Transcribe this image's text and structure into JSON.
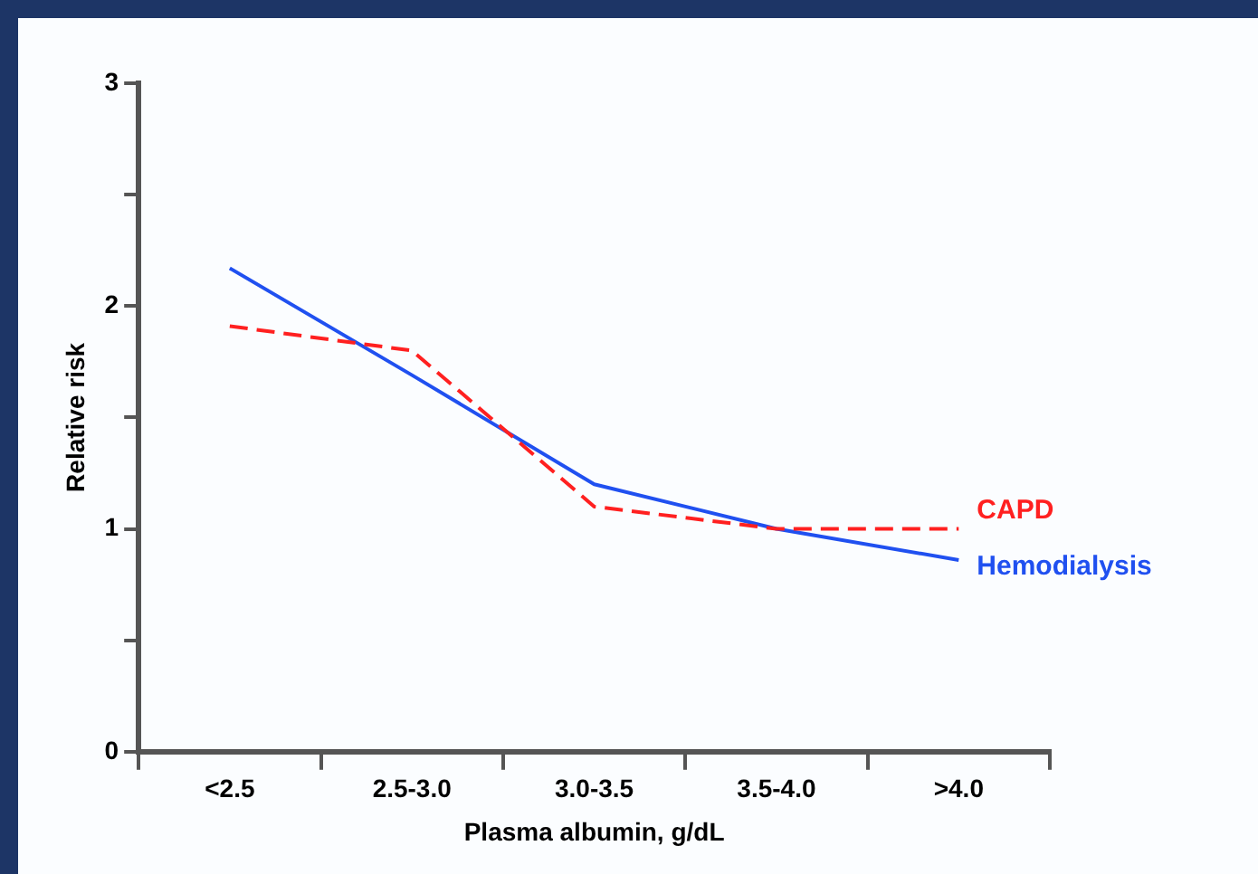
{
  "chart_data": {
    "type": "line",
    "xlabel": "Plasma albumin, g/dL",
    "ylabel": "Relative risk",
    "categories": [
      "<2.5",
      "2.5-3.0",
      "3.0-3.5",
      "3.5-4.0",
      ">4.0"
    ],
    "ylim": [
      0,
      3
    ],
    "yticks": [
      0,
      {
        "value": 0.5,
        "label": null
      },
      1,
      {
        "value": 1.5,
        "label": null
      },
      2,
      {
        "value": 2.5,
        "label": null
      },
      3
    ],
    "grid": false,
    "legend": false,
    "marker": "none",
    "series": [
      {
        "name": "CAPD",
        "color": "#ff2020",
        "line_style": "dashed",
        "values": [
          1.91,
          1.8,
          1.1,
          1.0,
          1.0
        ]
      },
      {
        "name": "Hemodialysis",
        "color": "#2050f0",
        "line_style": "solid",
        "values": [
          2.17,
          1.69,
          1.2,
          1.0,
          0.86
        ]
      }
    ]
  }
}
